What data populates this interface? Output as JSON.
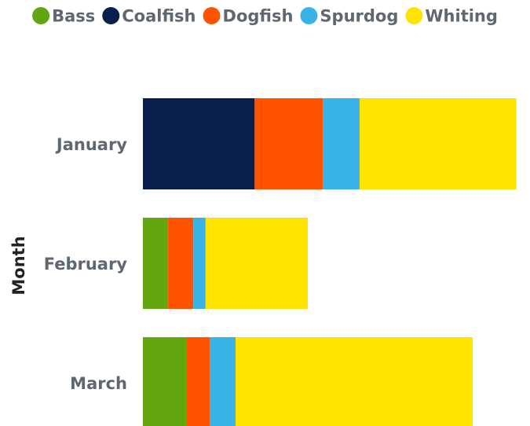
{
  "chart_data": {
    "type": "bar",
    "orientation": "horizontal",
    "stacked": true,
    "title": "",
    "xlabel": "",
    "ylabel": "Month",
    "xlim": [
      0,
      1400
    ],
    "grid": false,
    "legend_position": "top",
    "categories": [
      "January",
      "February",
      "March"
    ],
    "series": [
      {
        "name": "Bass",
        "color": "#62a60f",
        "values": [
          0,
          90,
          160
        ]
      },
      {
        "name": "Coalfish",
        "color": "#0a1f4b",
        "values": [
          410,
          0,
          0
        ]
      },
      {
        "name": "Dogfish",
        "color": "#ff5300",
        "values": [
          250,
          95,
          85
        ]
      },
      {
        "name": "Spurdog",
        "color": "#39b3e5",
        "values": [
          135,
          45,
          95
        ]
      },
      {
        "name": "Whiting",
        "color": "#ffe400",
        "values": [
          575,
          375,
          870
        ]
      }
    ]
  }
}
